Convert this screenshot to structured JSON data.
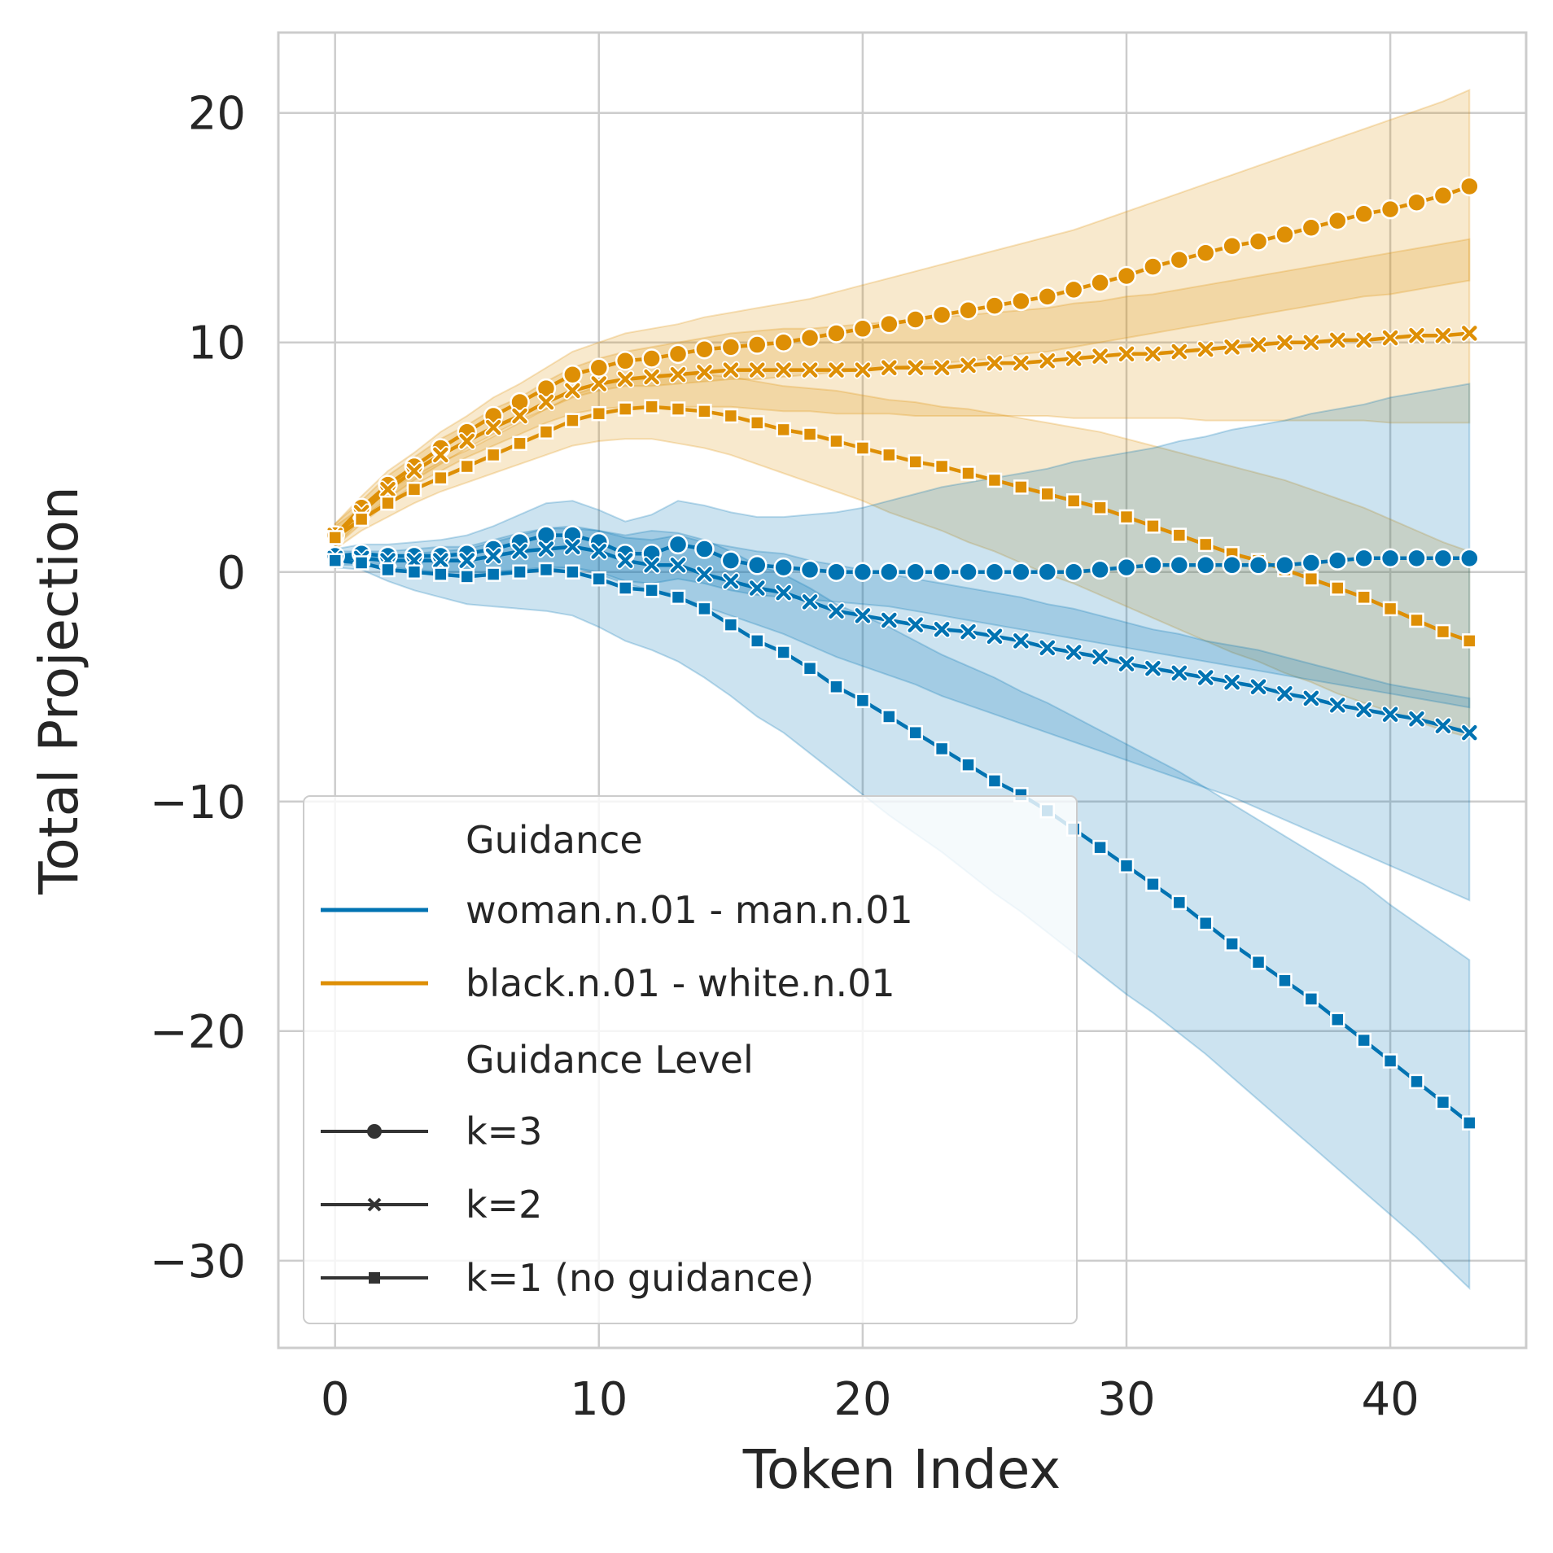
{
  "chart_data": {
    "type": "line",
    "xlabel": "Token Index",
    "ylabel": "Total Projection",
    "xlim": [
      -2.15,
      45.15
    ],
    "ylim": [
      -33.8,
      23.5
    ],
    "xticks": [
      0,
      10,
      20,
      30,
      40
    ],
    "yticks": [
      -30,
      -20,
      -10,
      0,
      10,
      20
    ],
    "xtick_labels": [
      "0",
      "10",
      "20",
      "30",
      "40"
    ],
    "ytick_labels": [
      "−30",
      "−20",
      "−10",
      "0",
      "10",
      "20"
    ],
    "grid": true,
    "legend": {
      "position": "lower-left",
      "hue_title": "Guidance",
      "style_title": "Guidance Level",
      "hue_entries": [
        "woman.n.01 - man.n.01",
        "black.n.01 - white.n.01"
      ],
      "style_entries": [
        "k=3",
        "k=2",
        "k=1 (no guidance)"
      ]
    },
    "colors": {
      "woman.n.01 - man.n.01": "#0173b2",
      "black.n.01 - white.n.01": "#de8f05"
    },
    "markers": {
      "k=3": "circle",
      "k=2": "x",
      "k=1 (no guidance)": "square"
    },
    "x": [
      0,
      1,
      2,
      3,
      4,
      5,
      6,
      7,
      8,
      9,
      10,
      11,
      12,
      13,
      14,
      15,
      16,
      17,
      18,
      19,
      20,
      21,
      22,
      23,
      24,
      25,
      26,
      27,
      28,
      29,
      30,
      31,
      32,
      33,
      34,
      35,
      36,
      37,
      38,
      39,
      40,
      41,
      42,
      43
    ],
    "series": [
      {
        "name": "black.n.01 - white.n.01 / k=3",
        "guidance": "black.n.01 - white.n.01",
        "level": "k=3",
        "values": [
          1.6,
          2.8,
          3.8,
          4.6,
          5.4,
          6.1,
          6.8,
          7.4,
          8.0,
          8.6,
          8.9,
          9.2,
          9.3,
          9.5,
          9.7,
          9.8,
          9.9,
          10.0,
          10.2,
          10.4,
          10.6,
          10.8,
          11.0,
          11.2,
          11.4,
          11.6,
          11.8,
          12.0,
          12.3,
          12.6,
          12.9,
          13.3,
          13.6,
          13.9,
          14.2,
          14.4,
          14.7,
          15.0,
          15.3,
          15.6,
          15.8,
          16.1,
          16.4,
          16.8
        ],
        "ci_lower": [
          1.1,
          2.3,
          3.2,
          4.0,
          4.7,
          5.4,
          6.0,
          6.6,
          7.1,
          7.6,
          7.9,
          8.1,
          8.1,
          8.2,
          8.3,
          8.4,
          8.4,
          8.5,
          8.6,
          8.7,
          8.8,
          8.9,
          9.0,
          9.1,
          9.2,
          9.3,
          9.5,
          9.6,
          9.8,
          10.0,
          10.2,
          10.4,
          10.6,
          10.8,
          11.0,
          11.2,
          11.4,
          11.6,
          11.8,
          12.0,
          12.1,
          12.3,
          12.5,
          12.7
        ],
        "ci_upper": [
          2.1,
          3.3,
          4.4,
          5.2,
          6.1,
          6.8,
          7.6,
          8.2,
          8.9,
          9.6,
          10.0,
          10.4,
          10.6,
          10.8,
          11.1,
          11.3,
          11.5,
          11.7,
          11.9,
          12.2,
          12.5,
          12.8,
          13.1,
          13.4,
          13.7,
          14.0,
          14.3,
          14.6,
          14.9,
          15.3,
          15.7,
          16.1,
          16.5,
          16.9,
          17.3,
          17.7,
          18.1,
          18.5,
          18.9,
          19.3,
          19.7,
          20.1,
          20.5,
          21.0
        ]
      },
      {
        "name": "black.n.01 - white.n.01 / k=2",
        "guidance": "black.n.01 - white.n.01",
        "level": "k=2",
        "values": [
          1.6,
          2.6,
          3.6,
          4.4,
          5.1,
          5.7,
          6.3,
          6.8,
          7.4,
          7.9,
          8.2,
          8.4,
          8.5,
          8.6,
          8.7,
          8.8,
          8.8,
          8.8,
          8.8,
          8.8,
          8.8,
          8.9,
          8.9,
          8.9,
          9.0,
          9.1,
          9.1,
          9.2,
          9.3,
          9.4,
          9.5,
          9.5,
          9.6,
          9.7,
          9.8,
          9.9,
          10.0,
          10.0,
          10.1,
          10.1,
          10.2,
          10.3,
          10.3,
          10.4
        ],
        "ci_lower": [
          1.1,
          2.1,
          3.0,
          3.8,
          4.4,
          5.0,
          5.5,
          6.0,
          6.5,
          6.9,
          7.1,
          7.2,
          7.2,
          7.2,
          7.2,
          7.2,
          7.1,
          7.0,
          7.0,
          6.9,
          6.9,
          6.9,
          6.8,
          6.8,
          6.8,
          6.8,
          6.8,
          6.8,
          6.7,
          6.7,
          6.7,
          6.7,
          6.7,
          6.6,
          6.6,
          6.6,
          6.6,
          6.6,
          6.6,
          6.6,
          6.5,
          6.5,
          6.5,
          6.5
        ],
        "ci_upper": [
          2.1,
          3.1,
          4.2,
          5.0,
          5.8,
          6.4,
          7.1,
          7.6,
          8.3,
          8.9,
          9.3,
          9.6,
          9.8,
          10.0,
          10.2,
          10.4,
          10.5,
          10.6,
          10.6,
          10.7,
          10.8,
          10.9,
          11.0,
          11.1,
          11.2,
          11.3,
          11.4,
          11.5,
          11.7,
          11.8,
          12.0,
          12.1,
          12.3,
          12.5,
          12.7,
          12.9,
          13.1,
          13.3,
          13.5,
          13.7,
          13.9,
          14.1,
          14.3,
          14.5
        ]
      },
      {
        "name": "black.n.01 - white.n.01 / k=1 (no guidance)",
        "guidance": "black.n.01 - white.n.01",
        "level": "k=1 (no guidance)",
        "values": [
          1.5,
          2.3,
          3.0,
          3.6,
          4.1,
          4.6,
          5.1,
          5.6,
          6.1,
          6.6,
          6.9,
          7.1,
          7.2,
          7.1,
          7.0,
          6.8,
          6.5,
          6.2,
          6.0,
          5.7,
          5.4,
          5.1,
          4.8,
          4.6,
          4.3,
          4.0,
          3.7,
          3.4,
          3.1,
          2.8,
          2.4,
          2.0,
          1.6,
          1.2,
          0.8,
          0.5,
          0.1,
          -0.3,
          -0.7,
          -1.1,
          -1.6,
          -2.1,
          -2.6,
          -3.0
        ],
        "ci_lower": [
          1.0,
          1.8,
          2.4,
          3.0,
          3.5,
          3.9,
          4.3,
          4.7,
          5.1,
          5.5,
          5.7,
          5.8,
          5.8,
          5.6,
          5.4,
          5.1,
          4.7,
          4.3,
          3.9,
          3.5,
          3.1,
          2.6,
          2.2,
          1.8,
          1.3,
          0.9,
          0.4,
          -0.1,
          -0.5,
          -1.0,
          -1.5,
          -2.0,
          -2.5,
          -3.0,
          -3.5,
          -3.9,
          -4.4,
          -4.8,
          -5.3,
          -5.7,
          -6.1,
          -6.5,
          -6.9,
          -7.2
        ],
        "ci_upper": [
          2.0,
          2.8,
          3.6,
          4.2,
          4.8,
          5.3,
          5.9,
          6.5,
          7.1,
          7.7,
          8.1,
          8.4,
          8.6,
          8.6,
          8.6,
          8.5,
          8.3,
          8.1,
          8.0,
          7.9,
          7.7,
          7.5,
          7.4,
          7.2,
          7.1,
          6.9,
          6.7,
          6.5,
          6.3,
          6.1,
          5.8,
          5.5,
          5.2,
          4.9,
          4.6,
          4.3,
          4.0,
          3.6,
          3.2,
          2.8,
          2.3,
          1.8,
          1.3,
          0.9
        ]
      },
      {
        "name": "woman.n.01 - man.n.01 / k=3",
        "guidance": "woman.n.01 - man.n.01",
        "level": "k=3",
        "values": [
          0.7,
          0.8,
          0.7,
          0.7,
          0.7,
          0.8,
          1.0,
          1.3,
          1.6,
          1.6,
          1.3,
          0.8,
          0.8,
          1.2,
          1.0,
          0.5,
          0.3,
          0.2,
          0.1,
          0.0,
          0.0,
          0.0,
          0.0,
          0.0,
          0.0,
          0.0,
          0.0,
          0.0,
          0.0,
          0.1,
          0.2,
          0.3,
          0.3,
          0.3,
          0.3,
          0.3,
          0.3,
          0.4,
          0.5,
          0.6,
          0.6,
          0.6,
          0.6,
          0.6
        ],
        "ci_lower": [
          0.4,
          0.4,
          0.2,
          0.1,
          0.0,
          0.0,
          0.0,
          0.1,
          0.2,
          0.2,
          0.0,
          -0.4,
          -0.5,
          -0.3,
          -0.5,
          -0.8,
          -1.0,
          -1.1,
          -1.2,
          -1.3,
          -1.4,
          -1.5,
          -1.7,
          -1.9,
          -2.1,
          -2.3,
          -2.5,
          -2.7,
          -2.9,
          -3.1,
          -3.3,
          -3.5,
          -3.7,
          -3.9,
          -4.1,
          -4.3,
          -4.5,
          -4.7,
          -4.9,
          -5.1,
          -5.3,
          -5.5,
          -5.7,
          -5.9
        ],
        "ci_upper": [
          1.0,
          1.2,
          1.2,
          1.3,
          1.4,
          1.6,
          2.0,
          2.5,
          3.0,
          3.1,
          2.7,
          2.2,
          2.5,
          3.1,
          2.9,
          2.6,
          2.4,
          2.4,
          2.5,
          2.6,
          2.8,
          3.1,
          3.4,
          3.7,
          3.9,
          4.1,
          4.3,
          4.5,
          4.8,
          5.0,
          5.2,
          5.4,
          5.7,
          5.9,
          6.2,
          6.4,
          6.6,
          6.9,
          7.1,
          7.3,
          7.6,
          7.8,
          8.0,
          8.2
        ]
      },
      {
        "name": "woman.n.01 - man.n.01 / k=2",
        "guidance": "woman.n.01 - man.n.01",
        "level": "k=2",
        "values": [
          0.6,
          0.6,
          0.5,
          0.5,
          0.5,
          0.5,
          0.7,
          0.9,
          1.0,
          1.1,
          0.9,
          0.5,
          0.3,
          0.3,
          -0.1,
          -0.4,
          -0.7,
          -0.9,
          -1.3,
          -1.7,
          -1.9,
          -2.1,
          -2.3,
          -2.5,
          -2.6,
          -2.8,
          -3.0,
          -3.3,
          -3.5,
          -3.7,
          -4.0,
          -4.2,
          -4.4,
          -4.6,
          -4.8,
          -5.0,
          -5.3,
          -5.5,
          -5.8,
          -6.0,
          -6.2,
          -6.4,
          -6.7,
          -7.0
        ],
        "ci_lower": [
          0.3,
          0.3,
          0.1,
          0.0,
          -0.1,
          -0.1,
          0.0,
          0.1,
          0.1,
          0.2,
          -0.1,
          -0.5,
          -0.8,
          -1.1,
          -1.5,
          -1.9,
          -2.3,
          -2.7,
          -3.2,
          -3.7,
          -4.1,
          -4.5,
          -4.9,
          -5.4,
          -5.8,
          -6.2,
          -6.6,
          -7.0,
          -7.4,
          -7.8,
          -8.2,
          -8.6,
          -9.0,
          -9.4,
          -9.8,
          -10.3,
          -10.8,
          -11.3,
          -11.8,
          -12.3,
          -12.8,
          -13.3,
          -13.8,
          -14.3
        ],
        "ci_upper": [
          0.9,
          0.9,
          0.9,
          1.0,
          1.1,
          1.1,
          1.4,
          1.7,
          1.9,
          2.0,
          1.8,
          1.5,
          1.4,
          1.6,
          1.3,
          1.1,
          0.9,
          0.8,
          0.5,
          0.3,
          0.1,
          -0.1,
          -0.3,
          -0.5,
          -0.7,
          -0.9,
          -1.1,
          -1.4,
          -1.6,
          -1.9,
          -2.2,
          -2.5,
          -2.7,
          -3.0,
          -3.2,
          -3.4,
          -3.7,
          -4.0,
          -4.3,
          -4.6,
          -4.9,
          -5.1,
          -5.3,
          -5.5
        ]
      },
      {
        "name": "woman.n.01 - man.n.01 / k=1 (no guidance)",
        "guidance": "woman.n.01 - man.n.01",
        "level": "k=1 (no guidance)",
        "values": [
          0.5,
          0.4,
          0.1,
          0.0,
          -0.1,
          -0.2,
          -0.1,
          0.0,
          0.1,
          0.0,
          -0.3,
          -0.7,
          -0.8,
          -1.1,
          -1.6,
          -2.3,
          -3.0,
          -3.5,
          -4.2,
          -5.0,
          -5.6,
          -6.3,
          -7.0,
          -7.7,
          -8.4,
          -9.1,
          -9.7,
          -10.4,
          -11.2,
          -12.0,
          -12.8,
          -13.6,
          -14.4,
          -15.3,
          -16.2,
          -17.0,
          -17.8,
          -18.6,
          -19.5,
          -20.4,
          -21.3,
          -22.2,
          -23.1,
          -24.0
        ],
        "ci_lower": [
          0.2,
          0.1,
          -0.4,
          -0.8,
          -1.1,
          -1.4,
          -1.5,
          -1.6,
          -1.7,
          -1.9,
          -2.4,
          -3.0,
          -3.4,
          -3.9,
          -4.6,
          -5.4,
          -6.3,
          -7.0,
          -7.9,
          -8.8,
          -9.7,
          -10.6,
          -11.4,
          -12.2,
          -13.1,
          -14.0,
          -14.8,
          -15.7,
          -16.6,
          -17.5,
          -18.4,
          -19.2,
          -20.1,
          -21.0,
          -22.0,
          -23.0,
          -24.0,
          -25.0,
          -26.0,
          -27.0,
          -28.0,
          -29.0,
          -30.1,
          -31.2
        ],
        "ci_upper": [
          0.8,
          0.7,
          0.6,
          0.8,
          0.9,
          1.0,
          1.3,
          1.6,
          1.9,
          1.9,
          1.8,
          1.6,
          1.8,
          1.7,
          1.4,
          0.9,
          0.3,
          -0.1,
          -0.7,
          -1.4,
          -1.9,
          -2.4,
          -3.0,
          -3.6,
          -4.1,
          -4.6,
          -5.2,
          -5.7,
          -6.3,
          -6.9,
          -7.5,
          -8.1,
          -8.7,
          -9.4,
          -10.1,
          -10.8,
          -11.5,
          -12.2,
          -12.9,
          -13.6,
          -14.5,
          -15.3,
          -16.1,
          -16.9
        ]
      }
    ]
  }
}
